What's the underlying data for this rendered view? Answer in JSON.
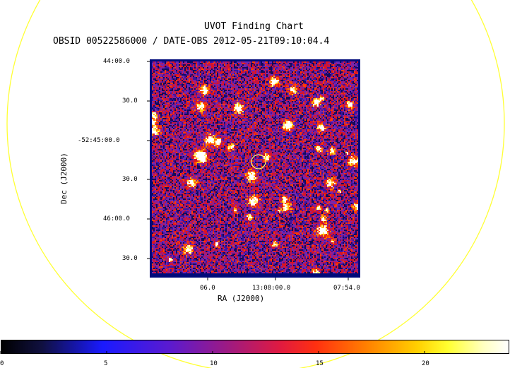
{
  "header": {
    "title": "UVOT Finding Chart",
    "subtitle": "OBSID 00522586000 / DATE-OBS 2012-05-21T09:10:04.4"
  },
  "axes": {
    "ylabel": "Dec (J2000)",
    "xlabel": "RA (J2000)",
    "dec_ticks": [
      "44:00.0",
      "30.0",
      "-52:45:00.0",
      "30.0",
      "46:00.0",
      "30.0"
    ],
    "ra_ticks": [
      "06.0",
      "13:08:00.0",
      "07:54.0"
    ]
  },
  "colorbar": {
    "range": [
      0,
      24
    ],
    "tick_labels": [
      "0",
      "5",
      "10",
      "15",
      "20"
    ],
    "tick_values": [
      0,
      5,
      10,
      15,
      20
    ]
  },
  "colors": {
    "footprint_circle": "#ffff33",
    "target_marker": "#ffff66",
    "frame": "#000a7a"
  }
}
